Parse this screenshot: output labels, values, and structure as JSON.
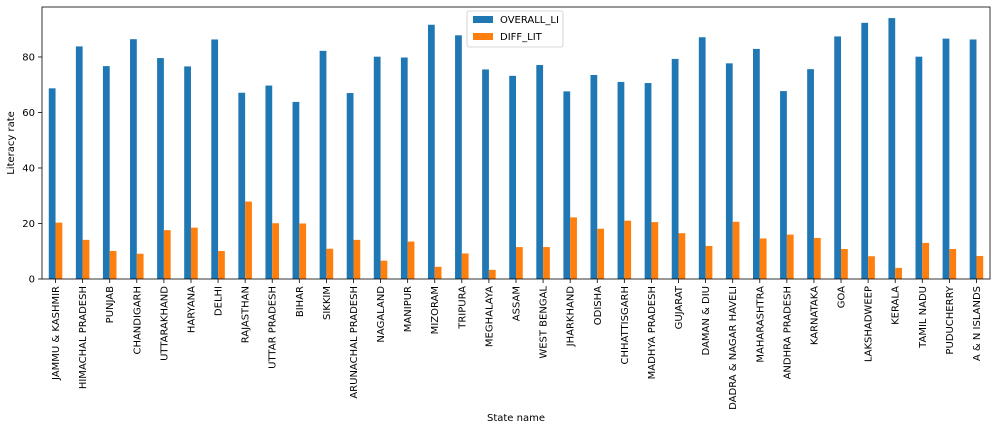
{
  "chart_data": {
    "type": "bar",
    "title": "",
    "xlabel": "State name",
    "ylabel": "Literacy rate",
    "ylim": [
      0,
      98
    ],
    "yticks": [
      0,
      20,
      40,
      60,
      80
    ],
    "grid": false,
    "legend_position": "top-center",
    "categories": [
      "JAMMU & KASHMIR",
      "HIMACHAL PRADESH",
      "PUNJAB",
      "CHANDIGARH",
      "UTTARAKHAND",
      "HARYANA",
      "DELHI",
      "RAJASTHAN",
      "UTTAR PRADESH",
      "BIHAR",
      "SIKKIM",
      "ARUNACHAL PRADESH",
      "NAGALAND",
      "MANIPUR",
      "MIZORAM",
      "TRIPURA",
      "MEGHALAYA",
      "ASSAM",
      "WEST BENGAL",
      "JHARKHAND",
      "ODISHA",
      "CHHATTISGARH",
      "MADHYA PRADESH",
      "GUJARAT",
      "DAMAN & DIU",
      "DADRA & NAGAR HAVELI",
      "MAHARASHTRA",
      "ANDHRA PRADESH",
      "KARNATAKA",
      "GOA",
      "LAKSHADWEEP",
      "KERALA",
      "TAMIL NADU",
      "PUDUCHERRY",
      "A & N ISLANDS"
    ],
    "series": [
      {
        "name": "OVERALL_LI",
        "color": "#1f77b4",
        "values": [
          68.7,
          83.8,
          76.7,
          86.4,
          79.6,
          76.6,
          86.3,
          67.1,
          69.7,
          63.8,
          82.2,
          67.0,
          80.1,
          79.8,
          91.6,
          87.8,
          75.5,
          73.2,
          77.1,
          67.6,
          73.5,
          71.0,
          70.6,
          79.3,
          87.1,
          77.7,
          82.9,
          67.7,
          75.6,
          87.4,
          92.3,
          94.0,
          80.1,
          86.6,
          86.3
        ]
      },
      {
        "name": "DIFF_LIT",
        "color": "#ff7f0e",
        "values": [
          20.3,
          14.1,
          10.1,
          9.1,
          17.6,
          18.5,
          10.1,
          27.9,
          20.1,
          20.0,
          10.9,
          14.1,
          6.6,
          13.5,
          4.4,
          9.2,
          3.3,
          11.5,
          11.5,
          22.2,
          18.1,
          21.0,
          20.5,
          16.5,
          11.9,
          20.6,
          14.6,
          16.0,
          14.8,
          10.8,
          8.2,
          4.0,
          13.0,
          10.8,
          8.3
        ]
      }
    ]
  }
}
